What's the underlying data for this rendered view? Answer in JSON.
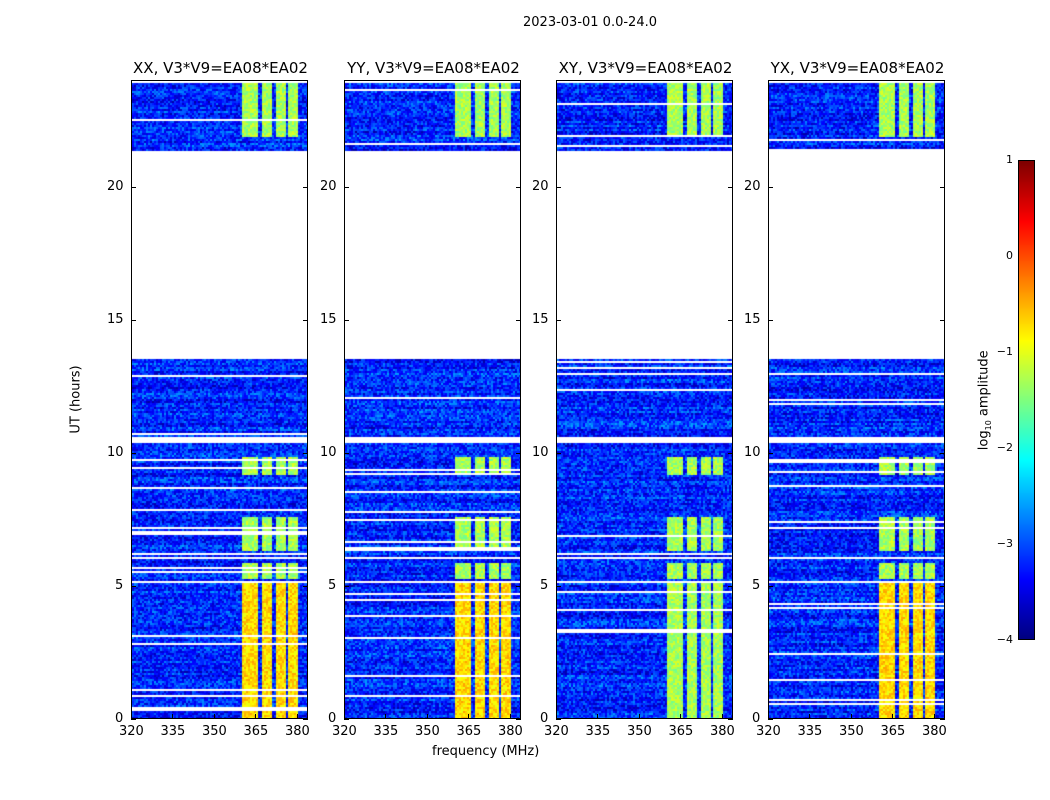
{
  "chart_data": {
    "type": "heatmap",
    "title": "2023-03-01 0.0-24.0",
    "xlabel": "frequency (MHz)",
    "ylabel": "UT (hours)",
    "xlim": [
      320,
      384
    ],
    "ylim": [
      0,
      24
    ],
    "xticks": [
      320,
      335,
      350,
      365,
      380
    ],
    "yticks": [
      0,
      5,
      10,
      15,
      20
    ],
    "panels": [
      {
        "title": "XX, V3*V9=EA08*EA02"
      },
      {
        "title": "YY, V3*V9=EA08*EA02"
      },
      {
        "title": "XY, V3*V9=EA08*EA02"
      },
      {
        "title": "YX, V3*V9=EA08*EA02"
      }
    ],
    "data_segments_hours": [
      [
        0,
        5.1
      ],
      [
        5.2,
        6.0
      ],
      [
        6.1,
        10.4
      ],
      [
        10.6,
        13.6
      ],
      [
        21.4,
        24
      ]
    ],
    "rfi_channels_mhz": [
      [
        360,
        366
      ],
      [
        367,
        371
      ],
      [
        372,
        376
      ],
      [
        377,
        380
      ]
    ],
    "rfi_active_hours": [
      [
        0,
        5.1
      ],
      [
        5.3,
        5.9
      ],
      [
        6.3,
        7.6
      ],
      [
        9.2,
        9.9
      ],
      [
        21.9,
        24
      ]
    ],
    "background_log_amplitude": -3.2,
    "rfi_log_amplitude_0_5h": -0.7,
    "rfi_log_amplitude_other": -1.3,
    "colorbar": {
      "label": "log10 amplitude",
      "label_main": "log",
      "label_sub": "10",
      "label_rest": " amplitude",
      "range": [
        -4,
        1
      ],
      "ticks": [
        1,
        0,
        -1,
        -2,
        -3,
        -4
      ],
      "tick_labels": [
        "1",
        "0",
        "−1",
        "−2",
        "−3",
        "−4"
      ],
      "colormap": "jet"
    }
  }
}
